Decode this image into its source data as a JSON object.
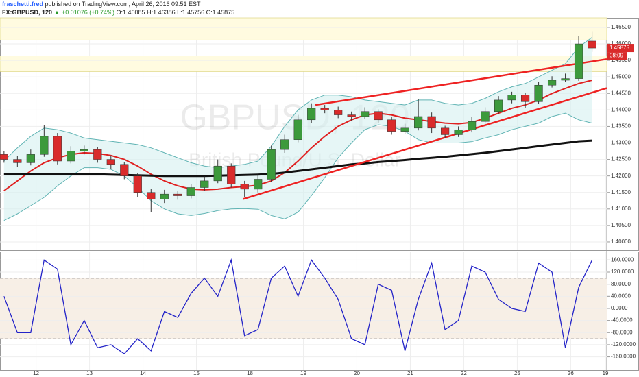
{
  "header": {
    "author": "fraschetti.fred",
    "published": "published on TradingView.com, April 26, 2016 09:51 EST",
    "symbol": "FX:GBPUSD, 120",
    "change": "▲ +0.01076 (+0.74%)",
    "ohlc": "O:1.46085 H:1.46386 L:1.45756 C:1.45875"
  },
  "chart_data": [
    {
      "type": "candlestick",
      "title": "GBPUSD, 120",
      "subtitle": "British Pound/U.S. Dollar",
      "countdown": "08:09",
      "up_color": "#3c9a3c",
      "down_color": "#d92b2b",
      "grid": true,
      "x": [
        0,
        1,
        2,
        3,
        4,
        5,
        6,
        7,
        8,
        9,
        10,
        11,
        12,
        13,
        14,
        15,
        16,
        17,
        18,
        19,
        20,
        21,
        22,
        23,
        24,
        25,
        26,
        27,
        28,
        29,
        30,
        31,
        32,
        33,
        34,
        35,
        36,
        37,
        38,
        39,
        40,
        41,
        42,
        43,
        44
      ],
      "open": [
        1.4265,
        1.425,
        1.424,
        1.4265,
        1.432,
        1.4245,
        1.4275,
        1.428,
        1.425,
        1.4235,
        1.42,
        1.415,
        1.413,
        1.4145,
        1.414,
        1.4165,
        1.4185,
        1.423,
        1.4175,
        1.416,
        1.419,
        1.428,
        1.431,
        1.437,
        1.4405,
        1.44,
        1.4385,
        1.438,
        1.4395,
        1.437,
        1.4335,
        1.4345,
        1.438,
        1.4345,
        1.4325,
        1.434,
        1.4365,
        1.4395,
        1.443,
        1.4445,
        1.4425,
        1.4475,
        1.449,
        1.4495,
        1.46085
      ],
      "high": [
        1.4275,
        1.426,
        1.428,
        1.4355,
        1.433,
        1.429,
        1.4292,
        1.4288,
        1.4262,
        1.4242,
        1.4208,
        1.416,
        1.4158,
        1.4155,
        1.4175,
        1.4198,
        1.425,
        1.4238,
        1.4185,
        1.4205,
        1.4292,
        1.4325,
        1.4385,
        1.442,
        1.4415,
        1.441,
        1.4395,
        1.4408,
        1.4402,
        1.4378,
        1.4358,
        1.4432,
        1.4392,
        1.4352,
        1.435,
        1.4378,
        1.4408,
        1.4442,
        1.4455,
        1.4452,
        1.4485,
        1.4502,
        1.451,
        1.4625,
        1.46386
      ],
      "low": [
        1.424,
        1.4228,
        1.4232,
        1.4258,
        1.4235,
        1.4238,
        1.4265,
        1.424,
        1.4222,
        1.419,
        1.4135,
        1.409,
        1.4118,
        1.4128,
        1.4132,
        1.4155,
        1.4178,
        1.4165,
        1.4135,
        1.415,
        1.4182,
        1.427,
        1.4302,
        1.436,
        1.439,
        1.4375,
        1.4368,
        1.4372,
        1.436,
        1.4325,
        1.4328,
        1.4338,
        1.433,
        1.4315,
        1.4318,
        1.4332,
        1.4358,
        1.4388,
        1.442,
        1.4405,
        1.4418,
        1.4468,
        1.4485,
        1.4488,
        1.45756
      ],
      "close": [
        1.425,
        1.424,
        1.4265,
        1.432,
        1.4245,
        1.4275,
        1.428,
        1.425,
        1.4235,
        1.42,
        1.415,
        1.413,
        1.4145,
        1.414,
        1.4165,
        1.4185,
        1.423,
        1.4175,
        1.416,
        1.419,
        1.428,
        1.431,
        1.437,
        1.4405,
        1.44,
        1.4385,
        1.438,
        1.4395,
        1.437,
        1.4335,
        1.4345,
        1.438,
        1.4345,
        1.4325,
        1.434,
        1.4365,
        1.4395,
        1.443,
        1.4445,
        1.4425,
        1.4475,
        1.449,
        1.4495,
        1.46,
        1.45875
      ],
      "band": {
        "color": "#5fb3b3",
        "fill": "#d6f0f0",
        "upper": [
          1.4245,
          1.4285,
          1.432,
          1.4345,
          1.434,
          1.433,
          1.4315,
          1.431,
          1.4305,
          1.43,
          1.4295,
          1.4285,
          1.427,
          1.4255,
          1.424,
          1.423,
          1.4225,
          1.423,
          1.4235,
          1.4245,
          1.429,
          1.435,
          1.44,
          1.443,
          1.4445,
          1.4445,
          1.444,
          1.443,
          1.4425,
          1.442,
          1.4415,
          1.443,
          1.443,
          1.442,
          1.4415,
          1.442,
          1.4435,
          1.4455,
          1.447,
          1.448,
          1.45,
          1.452,
          1.454,
          1.459,
          1.462
        ],
        "lower": [
          1.4065,
          1.4085,
          1.411,
          1.4135,
          1.417,
          1.42,
          1.4225,
          1.4225,
          1.422,
          1.42,
          1.4165,
          1.4125,
          1.41,
          1.4085,
          1.408,
          1.4086,
          1.4095,
          1.41,
          1.4101,
          1.4099,
          1.408,
          1.407,
          1.409,
          1.414,
          1.4195,
          1.4255,
          1.43,
          1.434,
          1.4355,
          1.435,
          1.4335,
          1.431,
          1.43,
          1.43,
          1.43,
          1.4304,
          1.4315,
          1.4325,
          1.434,
          1.435,
          1.436,
          1.438,
          1.439,
          1.437,
          1.436
        ]
      },
      "series": [
        {
          "color": "#e02020",
          "width": 2,
          "values": [
            1.4155,
            1.4185,
            1.4215,
            1.424,
            1.4255,
            1.4265,
            1.427,
            1.4268,
            1.4262,
            1.425,
            1.423,
            1.4205,
            1.4185,
            1.417,
            1.416,
            1.4158,
            1.416,
            1.4165,
            1.4168,
            1.4172,
            1.4185,
            1.421,
            1.4245,
            1.4285,
            1.432,
            1.435,
            1.437,
            1.4385,
            1.439,
            1.4385,
            1.4375,
            1.437,
            1.4365,
            1.436,
            1.4358,
            1.4362,
            1.4375,
            1.439,
            1.4405,
            1.4415,
            1.443,
            1.445,
            1.4465,
            1.448,
            1.449
          ]
        },
        {
          "color": "#111111",
          "width": 3,
          "values": [
            1.4205,
            1.4205,
            1.4205,
            1.4206,
            1.4206,
            1.4206,
            1.4206,
            1.4205,
            1.4204,
            1.4203,
            1.4202,
            1.4201,
            1.42,
            1.42,
            1.42,
            1.42,
            1.4201,
            1.4202,
            1.4203,
            1.4204,
            1.4206,
            1.421,
            1.4215,
            1.422,
            1.4225,
            1.423,
            1.4235,
            1.4238,
            1.4242,
            1.4245,
            1.4248,
            1.4252,
            1.4255,
            1.4258,
            1.4262,
            1.4266,
            1.427,
            1.4275,
            1.428,
            1.4285,
            1.429,
            1.4295,
            1.43,
            1.4305,
            1.4307
          ]
        }
      ],
      "trendlines": [
        {
          "color": "#ee2222",
          "x": [
            23.3,
            45.1
          ],
          "y": [
            1.4415,
            1.4554
          ]
        },
        {
          "color": "#ee2222",
          "x": [
            17.9,
            45.1
          ],
          "y": [
            1.413,
            1.4466
          ]
        }
      ],
      "zones": [
        {
          "color": "#fffbe0",
          "y": [
            1.4612,
            1.4679
          ]
        },
        {
          "color": "#fffbe0",
          "y": [
            1.4516,
            1.4564
          ]
        }
      ],
      "xlim": [
        -0.3,
        45.1
      ],
      "xticks": [
        {
          "value": 2.4,
          "label": "12"
        },
        {
          "value": 6.4,
          "label": "13"
        },
        {
          "value": 10.4,
          "label": "14"
        },
        {
          "value": 14.4,
          "label": "15"
        },
        {
          "value": 18.4,
          "label": "18"
        },
        {
          "value": 22.4,
          "label": "19"
        },
        {
          "value": 26.4,
          "label": "20"
        },
        {
          "value": 30.4,
          "label": "21"
        },
        {
          "value": 34.4,
          "label": "22"
        },
        {
          "value": 38.4,
          "label": "25"
        },
        {
          "value": 42.4,
          "label": "26"
        },
        {
          "value": 45.0,
          "label": "19"
        }
      ],
      "ylim": [
        1.3975,
        1.4679
      ],
      "yticks": [
        {
          "value": 1.4,
          "label": "1.40000"
        },
        {
          "value": 1.405,
          "label": "1.40500"
        },
        {
          "value": 1.41,
          "label": "1.41000"
        },
        {
          "value": 1.415,
          "label": "1.41500"
        },
        {
          "value": 1.42,
          "label": "1.42000"
        },
        {
          "value": 1.425,
          "label": "1.42500"
        },
        {
          "value": 1.43,
          "label": "1.43000"
        },
        {
          "value": 1.435,
          "label": "1.43500"
        },
        {
          "value": 1.44,
          "label": "1.44000"
        },
        {
          "value": 1.445,
          "label": "1.44500"
        },
        {
          "value": 1.45,
          "label": "1.45000"
        },
        {
          "value": 1.455,
          "label": "1.45500"
        },
        {
          "value": 1.46,
          "label": "1.46000"
        },
        {
          "value": 1.465,
          "label": "1.46500"
        }
      ]
    },
    {
      "type": "line",
      "color": "#2323c8",
      "band": [
        -100,
        100
      ],
      "band_fill": "#f7efe6",
      "grid": true,
      "x": [
        0,
        1,
        2,
        3,
        4,
        5,
        6,
        7,
        8,
        9,
        10,
        11,
        12,
        13,
        14,
        15,
        16,
        17,
        18,
        19,
        20,
        21,
        22,
        23,
        24,
        25,
        26,
        27,
        28,
        29,
        30,
        31,
        32,
        33,
        34,
        35,
        36,
        37,
        38,
        39,
        40,
        41,
        42,
        43,
        44
      ],
      "values": [
        40,
        -80,
        -80,
        160,
        130,
        -120,
        -40,
        -130,
        -120,
        -150,
        -100,
        -140,
        -10,
        -30,
        50,
        100,
        40,
        160,
        -90,
        -70,
        100,
        140,
        40,
        160,
        100,
        30,
        -100,
        -120,
        80,
        60,
        -140,
        30,
        150,
        -70,
        -40,
        140,
        120,
        30,
        0,
        -10,
        150,
        120,
        -130,
        70,
        160
      ],
      "ylim": [
        -204,
        188
      ],
      "yticks": [
        {
          "value": 160,
          "label": "160.0000"
        },
        {
          "value": 120,
          "label": "120.0000"
        },
        {
          "value": 80,
          "label": "80.0000"
        },
        {
          "value": 40,
          "label": "40.0000"
        },
        {
          "value": 0,
          "label": "0.0000"
        },
        {
          "value": -40,
          "label": "-40.0000"
        },
        {
          "value": -80,
          "label": "-80.0000"
        },
        {
          "value": -120,
          "label": "-120.0000"
        },
        {
          "value": -160,
          "label": "-160.0000"
        }
      ]
    }
  ]
}
